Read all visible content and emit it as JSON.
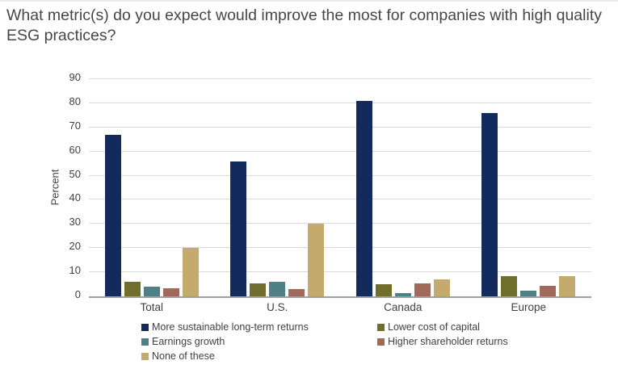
{
  "chart_data": {
    "type": "bar",
    "title": "What metric(s) do you expect would improve the most for companies with high quality ESG practices?",
    "ylabel": "Percent",
    "xlabel": "",
    "ylim": [
      0,
      90
    ],
    "ytick_step": 10,
    "grid": true,
    "legend_position": "bottom",
    "categories": [
      "Total",
      "U.S.",
      "Canada",
      "Europe"
    ],
    "series": [
      {
        "name": "More sustainable long-term returns",
        "color": "#122a5c",
        "values": [
          67,
          56,
          81,
          76
        ]
      },
      {
        "name": "Lower cost of capital",
        "color": "#6f6e2d",
        "values": [
          6,
          5.5,
          5,
          8.5
        ]
      },
      {
        "name": "Earnings growth",
        "color": "#4d8183",
        "values": [
          4,
          6,
          1.5,
          2.5
        ]
      },
      {
        "name": "Higher shareholder returns",
        "color": "#a16a58",
        "values": [
          3.5,
          3,
          5.5,
          4.5
        ]
      },
      {
        "name": "None of these",
        "color": "#c5aa6d",
        "values": [
          20,
          30,
          7,
          8.5
        ]
      }
    ],
    "colors": {
      "gridline": "#d9d9d9",
      "axis_line": "#9aa0a6",
      "text": "#404040",
      "title_text": "#43464b"
    }
  }
}
